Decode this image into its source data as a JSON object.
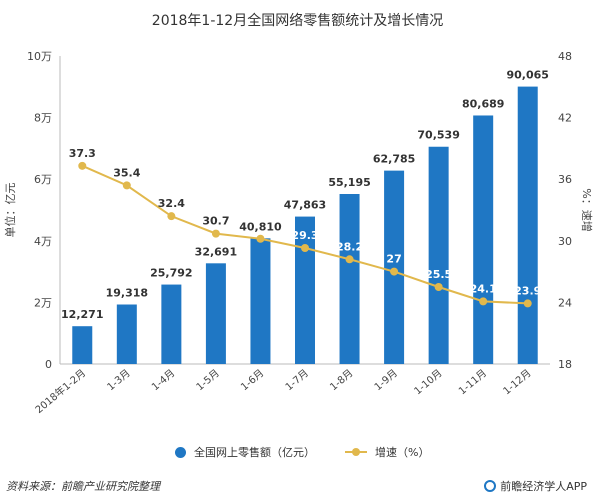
{
  "chart_data": {
    "type": "bar+line",
    "title": "2018年1-12月全国网络零售额统计及增长情况",
    "categories": [
      "2018年1-2月",
      "1-3月",
      "1-4月",
      "1-5月",
      "1-6月",
      "1-7月",
      "1-8月",
      "1-9月",
      "1-10月",
      "1-11月",
      "1-12月"
    ],
    "series": [
      {
        "name": "全国网上零售额（亿元）",
        "type": "bar",
        "axis": "left",
        "color": "#1f77c4",
        "values": [
          12271,
          19318,
          25792,
          32691,
          40810,
          47863,
          55195,
          62785,
          70539,
          80689,
          90065
        ],
        "labels": [
          "12,271",
          "19,318",
          "25,792",
          "32,691",
          "40,810",
          "47,863",
          "55,195",
          "62,785",
          "70,539",
          "80,689",
          "90,065"
        ]
      },
      {
        "name": "增速（%）",
        "type": "line",
        "axis": "right",
        "color": "#e1b84c",
        "values": [
          37.3,
          35.4,
          32.4,
          30.7,
          30.2,
          29.3,
          28.2,
          27,
          25.5,
          24.1,
          23.9
        ],
        "labels": [
          "37.3",
          "35.4",
          "32.4",
          "30.7",
          "",
          "29.3",
          "28.2",
          "27",
          "25.5",
          "24.1",
          "23.9"
        ]
      }
    ],
    "ylabel_left": "单位：亿元",
    "ylabel_right": "%：速增",
    "ylim_left": [
      0,
      100000
    ],
    "yticks_left": [
      "0",
      "2万",
      "4万",
      "6万",
      "8万",
      "10万"
    ],
    "ylim_right": [
      18,
      48
    ],
    "yticks_right": [
      "18",
      "24",
      "30",
      "36",
      "42",
      "48"
    ],
    "grid": false,
    "legend": "bottom"
  },
  "footer": {
    "source": "资料来源：前瞻产业研究院整理",
    "brand": "前瞻经济学人APP"
  }
}
